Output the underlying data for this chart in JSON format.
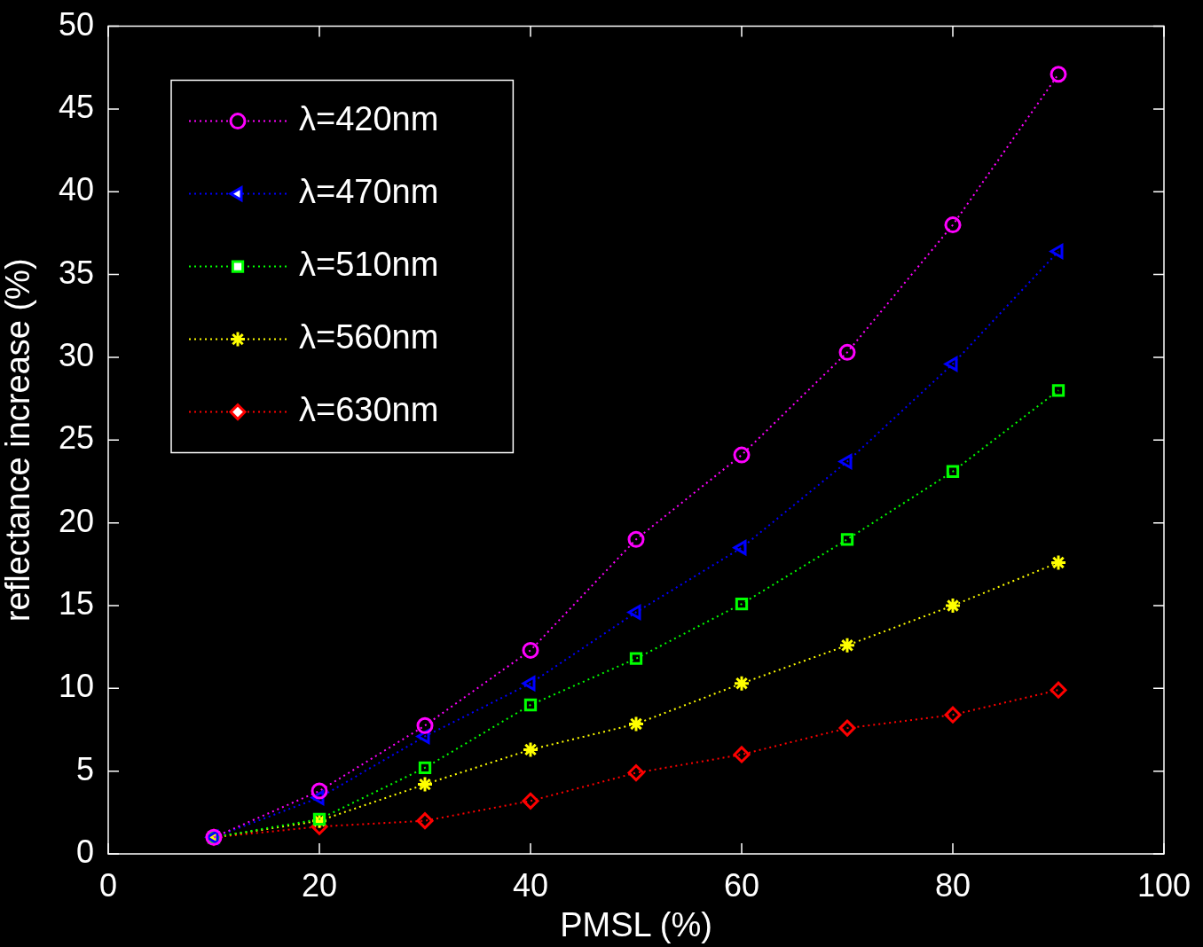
{
  "chart_data": {
    "type": "line",
    "xlabel": "PMSL (%)",
    "ylabel": "reflectance increase (%)",
    "x": [
      10,
      20,
      30,
      40,
      50,
      60,
      70,
      80,
      90
    ],
    "xlim": [
      0,
      100
    ],
    "xticks": [
      0,
      20,
      40,
      60,
      80,
      100
    ],
    "ylim": [
      0,
      50
    ],
    "yticks": [
      0,
      5,
      10,
      15,
      20,
      25,
      30,
      35,
      40,
      45,
      50
    ],
    "grid": false,
    "legend": "top left",
    "line_style": "dotted",
    "series": [
      {
        "name": "λ=420nm",
        "color": "#ff00ff",
        "marker": "circle",
        "values": [
          1,
          3.8,
          7.75,
          12.3,
          19,
          24.1,
          30.3,
          38,
          47.1
        ]
      },
      {
        "name": "λ=470nm",
        "color": "#0000ff",
        "marker": "triangle",
        "values": [
          1,
          3.4,
          7.1,
          10.3,
          14.6,
          18.5,
          23.7,
          29.6,
          36.4
        ]
      },
      {
        "name": "λ=510nm",
        "color": "#00ff00",
        "marker": "square",
        "values": [
          1,
          2.1,
          5.2,
          9,
          11.8,
          15.1,
          19,
          23.1,
          28
        ]
      },
      {
        "name": "λ=560nm",
        "color": "#ffff00",
        "marker": "cross",
        "values": [
          1,
          2,
          4.2,
          6.3,
          7.85,
          10.3,
          12.6,
          15,
          17.6
        ]
      },
      {
        "name": "λ=630nm",
        "color": "#ff0000",
        "marker": "diamond",
        "values": [
          1,
          1.65,
          2,
          3.2,
          4.9,
          6,
          7.6,
          8.4,
          9.9
        ]
      }
    ]
  }
}
